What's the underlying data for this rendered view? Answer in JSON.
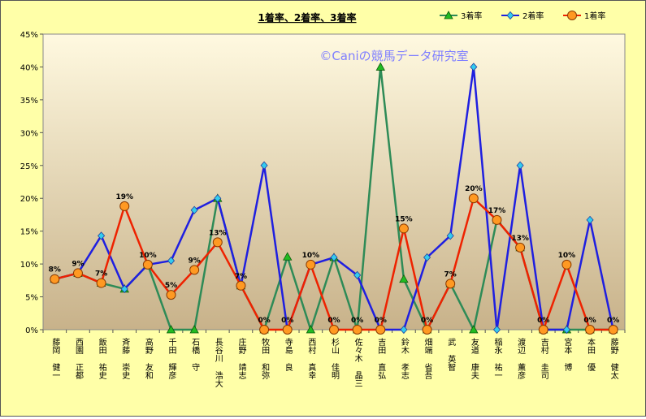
{
  "chart_data": {
    "type": "line",
    "title": "1着率、2着率、3着率",
    "watermark": "©Caniの競馬データ研究室",
    "xlabel": "",
    "ylabel": "",
    "ylim": [
      0,
      45
    ],
    "y_ticks": [
      "0%",
      "5%",
      "10%",
      "15%",
      "20%",
      "25%",
      "30%",
      "35%",
      "40%",
      "45%"
    ],
    "grid": false,
    "legend_position": "top-right",
    "categories": [
      "藤岡 健一",
      "西園 正都",
      "飯田 祐史",
      "斉藤 崇史",
      "高野 友和",
      "千田 輝彦",
      "石橋 守",
      "長谷川 浩大",
      "庄野 靖志",
      "牧田 和弥",
      "寺島 良",
      "西村 真幸",
      "杉山 佳明",
      "佐々木 晶三",
      "吉田 直弘",
      "鈴木 孝志",
      "畑端 省吾",
      "武 英智",
      "友道 康夫",
      "稲永 祐一",
      "渡辺 薫彦",
      "吉村 圭司",
      "宮本 博",
      "本田 優",
      "藤野 健太"
    ],
    "series": [
      {
        "name": "3着率",
        "color": "#2e8b57",
        "marker": "triangle",
        "marker_fill": "#22bb22",
        "values": [
          7.7,
          8.6,
          7.1,
          6.2,
          9.9,
          0,
          0,
          20,
          6.7,
          0,
          11.1,
          0,
          11,
          0,
          40,
          7.7,
          0,
          7,
          0,
          16.7,
          12.5,
          0,
          0,
          0,
          0
        ]
      },
      {
        "name": "2着率",
        "color": "#1f1fe0",
        "marker": "diamond",
        "marker_fill": "#33ccee",
        "values": [
          7.7,
          8.6,
          14.3,
          6.2,
          9.9,
          10.5,
          18.2,
          20,
          6.7,
          25,
          0,
          9.9,
          11,
          8.3,
          0,
          0,
          11,
          14.3,
          40,
          0,
          25,
          0,
          0,
          16.7,
          0
        ]
      },
      {
        "name": "1着率",
        "color": "#ee2200",
        "marker": "circle",
        "marker_fill": "#ff9922",
        "values": [
          7.7,
          8.6,
          7.1,
          18.8,
          9.9,
          5.3,
          9.1,
          13.3,
          6.7,
          0,
          0,
          9.9,
          0,
          0,
          0,
          15.4,
          0,
          7,
          20,
          16.7,
          12.5,
          0,
          9.9,
          0,
          0
        ]
      }
    ],
    "data_labels": {
      "series": "1着率",
      "labels": [
        "8%",
        "9%",
        "7%",
        "19%",
        "10%",
        "5%",
        "9%",
        "13%",
        "7%",
        "0%",
        "0%",
        "10%",
        "0%",
        "0%",
        "0%",
        "15%",
        "0%",
        "7%",
        "20%",
        "17%",
        "13%",
        "0%",
        "10%",
        "0%",
        "0%"
      ]
    }
  }
}
